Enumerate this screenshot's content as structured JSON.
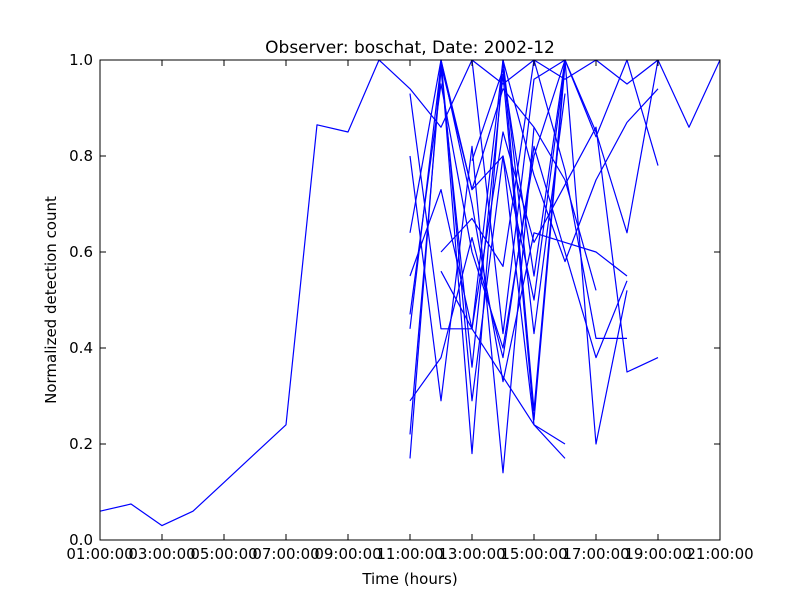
{
  "chart_data": {
    "type": "line",
    "title": "Observer: boschat, Date: 2002-12",
    "xlabel": "Time (hours)",
    "ylabel": "Normalized detection count",
    "xlim": [
      1,
      21
    ],
    "ylim": [
      0,
      1
    ],
    "x_tick_values": [
      1,
      3,
      5,
      7,
      9,
      11,
      13,
      15,
      17,
      19,
      21
    ],
    "x_tick_labels": [
      "01:00:00",
      "03:00:00",
      "05:00:00",
      "07:00:00",
      "09:00:00",
      "11:00:00",
      "13:00:00",
      "15:00:00",
      "17:00:00",
      "19:00:00",
      "21:00:00"
    ],
    "y_tick_values": [
      0,
      0.2,
      0.4,
      0.6,
      0.8,
      1.0
    ],
    "y_tick_labels": [
      "0.0",
      "0.2",
      "0.4",
      "0.6",
      "0.8",
      "1.0"
    ],
    "line_color": "#0000ff",
    "grid": false,
    "series": [
      {
        "x": [
          1,
          2,
          3,
          4,
          5,
          6,
          7,
          8,
          9,
          10,
          11,
          12,
          13,
          14,
          15,
          16,
          17,
          18,
          19,
          20,
          21
        ],
        "y": [
          0.06,
          0.075,
          0.03,
          0.06,
          0.12,
          0.18,
          0.24,
          0.865,
          0.85,
          1.0,
          0.94,
          0.86,
          1.0,
          0.95,
          1.0,
          0.96,
          1.0,
          0.95,
          1.0,
          0.86,
          1.0
        ]
      },
      {
        "x": [
          11,
          12,
          13,
          14,
          15,
          16
        ],
        "y": [
          0.17,
          1.0,
          0.18,
          1.0,
          0.27,
          1.0
        ]
      },
      {
        "x": [
          11,
          12,
          13,
          14,
          15,
          16
        ],
        "y": [
          0.22,
          0.98,
          0.36,
          0.97,
          0.25,
          0.99
        ]
      },
      {
        "x": [
          11,
          12,
          13,
          14,
          15
        ],
        "y": [
          0.8,
          0.29,
          0.82,
          0.14,
          0.86
        ]
      },
      {
        "x": [
          11,
          12,
          13,
          14,
          15,
          16
        ],
        "y": [
          0.64,
          1.0,
          0.29,
          0.8,
          0.24,
          0.2
        ]
      },
      {
        "x": [
          11,
          12,
          13,
          14,
          15,
          16
        ],
        "y": [
          0.55,
          0.73,
          0.44,
          1.0,
          0.43,
          0.93
        ]
      },
      {
        "x": [
          11,
          12,
          13,
          14,
          15,
          16
        ],
        "y": [
          0.44,
          0.99,
          0.73,
          0.8,
          0.5,
          0.99
        ]
      },
      {
        "x": [
          11,
          12,
          13,
          14,
          15,
          16,
          17,
          18
        ],
        "y": [
          0.47,
          0.95,
          0.6,
          0.4,
          0.8,
          1.0,
          0.2,
          0.52
        ]
      },
      {
        "x": [
          12,
          13,
          14,
          15,
          16,
          17,
          18,
          19
        ],
        "y": [
          0.56,
          0.44,
          0.85,
          0.62,
          0.74,
          0.86,
          0.35,
          0.38
        ]
      },
      {
        "x": [
          11,
          12,
          13,
          14,
          15,
          16,
          17,
          18
        ],
        "y": [
          0.29,
          0.38,
          0.63,
          0.38,
          0.82,
          0.6,
          0.38,
          0.54
        ]
      },
      {
        "x": [
          12,
          13,
          14,
          15,
          16,
          17,
          18
        ],
        "y": [
          1.0,
          0.7,
          0.33,
          0.64,
          0.62,
          0.6,
          0.55
        ]
      },
      {
        "x": [
          12,
          13,
          14,
          15,
          16,
          17,
          18
        ],
        "y": [
          0.6,
          0.67,
          0.57,
          1.0,
          0.77,
          0.42,
          0.42
        ]
      },
      {
        "x": [
          13,
          14,
          15,
          16,
          17,
          18,
          19
        ],
        "y": [
          1.0,
          0.43,
          0.96,
          1.0,
          0.85,
          0.64,
          1.0
        ]
      },
      {
        "x": [
          14,
          15,
          16,
          17,
          18,
          19
        ],
        "y": [
          1.0,
          0.76,
          0.58,
          0.75,
          0.87,
          0.94
        ]
      },
      {
        "x": [
          11,
          12,
          13,
          14,
          15,
          16
        ],
        "y": [
          0.93,
          0.44,
          0.44,
          0.34,
          0.24,
          0.17
        ]
      },
      {
        "x": [
          12,
          13,
          14,
          15,
          16,
          17
        ],
        "y": [
          1.0,
          0.73,
          0.94,
          0.86,
          0.75,
          0.52
        ]
      },
      {
        "x": [
          13,
          14,
          15,
          16,
          17,
          18,
          19
        ],
        "y": [
          0.79,
          0.98,
          0.55,
          1.0,
          0.84,
          1.0,
          0.78
        ]
      }
    ]
  }
}
